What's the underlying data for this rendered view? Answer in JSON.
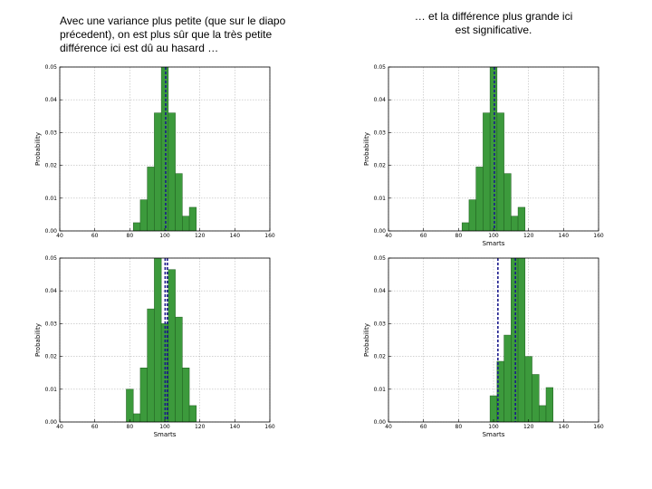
{
  "notes": {
    "left": "Avec une variance plus petite (que sur le diapo précedent), on est plus sûr que la très petite différence ici est dû au hasard …",
    "right": "… et la différence plus grande ici est significative."
  },
  "colors": {
    "bar": "#3c9a3c",
    "bar_edge": "#1f5e1f",
    "mean_line": "#1a1a8c",
    "grid": "#b8b8b8"
  },
  "chart_data": [
    {
      "type": "bar",
      "title": "",
      "xlabel": "",
      "ylabel": "Probability",
      "xlim": [
        40,
        160
      ],
      "ylim": [
        0,
        0.05
      ],
      "xticks": [
        "40",
        "60",
        "80",
        "100",
        "120",
        "140",
        "160"
      ],
      "yticks": [
        "0.00",
        "0.01",
        "0.02",
        "0.03",
        "0.04",
        "0.05"
      ],
      "grid": true,
      "bin_width": 4,
      "series": [
        {
          "bins": [
            82,
            86,
            90,
            94,
            98,
            102,
            106,
            110,
            114
          ],
          "values": [
            0.0025,
            0.0095,
            0.0195,
            0.036,
            0.05,
            0.036,
            0.0175,
            0.0045,
            0.0072
          ]
        }
      ],
      "mean_lines": [
        100.5
      ]
    },
    {
      "type": "bar",
      "title": "",
      "xlabel": "Smarts",
      "ylabel": "Probability",
      "xlim": [
        40,
        160
      ],
      "ylim": [
        0,
        0.05
      ],
      "xticks": [
        "40",
        "60",
        "80",
        "100",
        "120",
        "140",
        "160"
      ],
      "yticks": [
        "0.00",
        "0.01",
        "0.02",
        "0.03",
        "0.04",
        "0.05"
      ],
      "grid": true,
      "bin_width": 4,
      "series": [
        {
          "bins": [
            82,
            86,
            90,
            94,
            98,
            102,
            106,
            110,
            114
          ],
          "values": [
            0.0025,
            0.0095,
            0.0195,
            0.036,
            0.05,
            0.036,
            0.0175,
            0.0045,
            0.0072
          ]
        }
      ],
      "mean_lines": [
        100.5
      ]
    },
    {
      "type": "bar",
      "title": "",
      "xlabel": "Smarts",
      "ylabel": "Probability",
      "xlim": [
        40,
        160
      ],
      "ylim": [
        0,
        0.05
      ],
      "xticks": [
        "40",
        "60",
        "80",
        "100",
        "120",
        "140",
        "160"
      ],
      "yticks": [
        "0.00",
        "0.01",
        "0.02",
        "0.03",
        "0.04",
        "0.05"
      ],
      "grid": true,
      "bin_width": 4,
      "series": [
        {
          "bins": [
            78,
            82,
            86,
            90,
            94,
            98,
            102,
            106,
            110,
            114
          ],
          "values": [
            0.0,
            0.0025,
            0.0165,
            0.0345,
            0.05,
            0.03,
            0.0465,
            0.032,
            0.0165,
            0.005
          ]
        },
        {
          "bins": [
            78
          ],
          "values": [
            0.01
          ]
        }
      ],
      "mean_lines": [
        100.2,
        101.5
      ]
    },
    {
      "type": "bar",
      "title": "",
      "xlabel": "Smarts",
      "ylabel": "Probability",
      "xlim": [
        40,
        160
      ],
      "ylim": [
        0,
        0.05
      ],
      "xticks": [
        "40",
        "60",
        "80",
        "100",
        "120",
        "140",
        "160"
      ],
      "yticks": [
        "0.00",
        "0.01",
        "0.02",
        "0.03",
        "0.04",
        "0.05"
      ],
      "grid": true,
      "bin_width": 4,
      "series": [
        {
          "bins": [
            98,
            102,
            106,
            110,
            114,
            118,
            122,
            126,
            130
          ],
          "values": [
            0.008,
            0.0185,
            0.0265,
            0.05,
            0.05,
            0.02,
            0.0145,
            0.005,
            0.0105
          ]
        }
      ],
      "mean_lines": [
        102.5,
        112.5
      ]
    }
  ]
}
